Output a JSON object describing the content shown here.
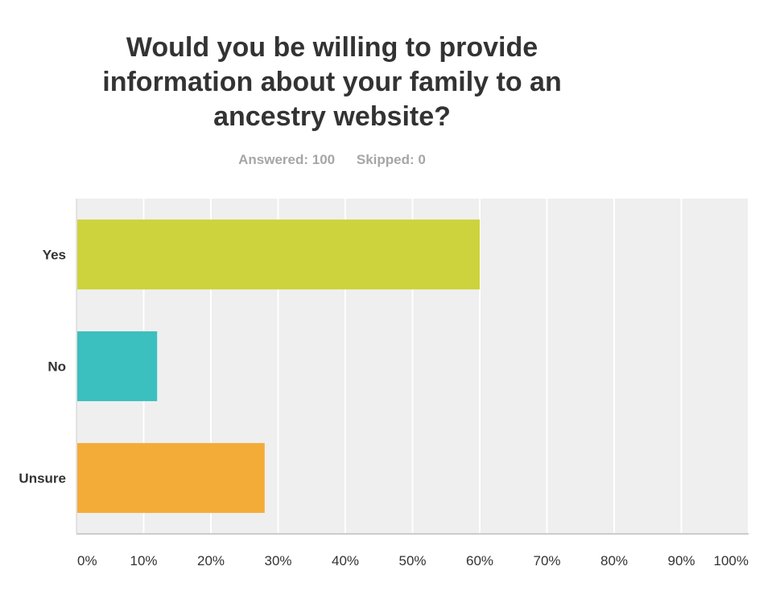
{
  "chart_data": {
    "type": "bar",
    "orientation": "horizontal",
    "title": "Would you be willing to provide information about your family to an ancestry website?",
    "title_lines": [
      "Would you be willing to provide",
      "information about your family to an",
      "ancestry website?"
    ],
    "answered_label": "Answered: 100",
    "skipped_label": "Skipped: 0",
    "categories": [
      "Yes",
      "No",
      "Unsure"
    ],
    "values": [
      60,
      12,
      28
    ],
    "colors": [
      "#cdd33d",
      "#3cbfbf",
      "#f4ac38"
    ],
    "xlim": [
      0,
      100
    ],
    "xticks": [
      "0%",
      "10%",
      "20%",
      "30%",
      "40%",
      "50%",
      "60%",
      "70%",
      "80%",
      "90%",
      "100%"
    ],
    "grid": true,
    "plot_background": "#efefef",
    "legend": "none"
  }
}
